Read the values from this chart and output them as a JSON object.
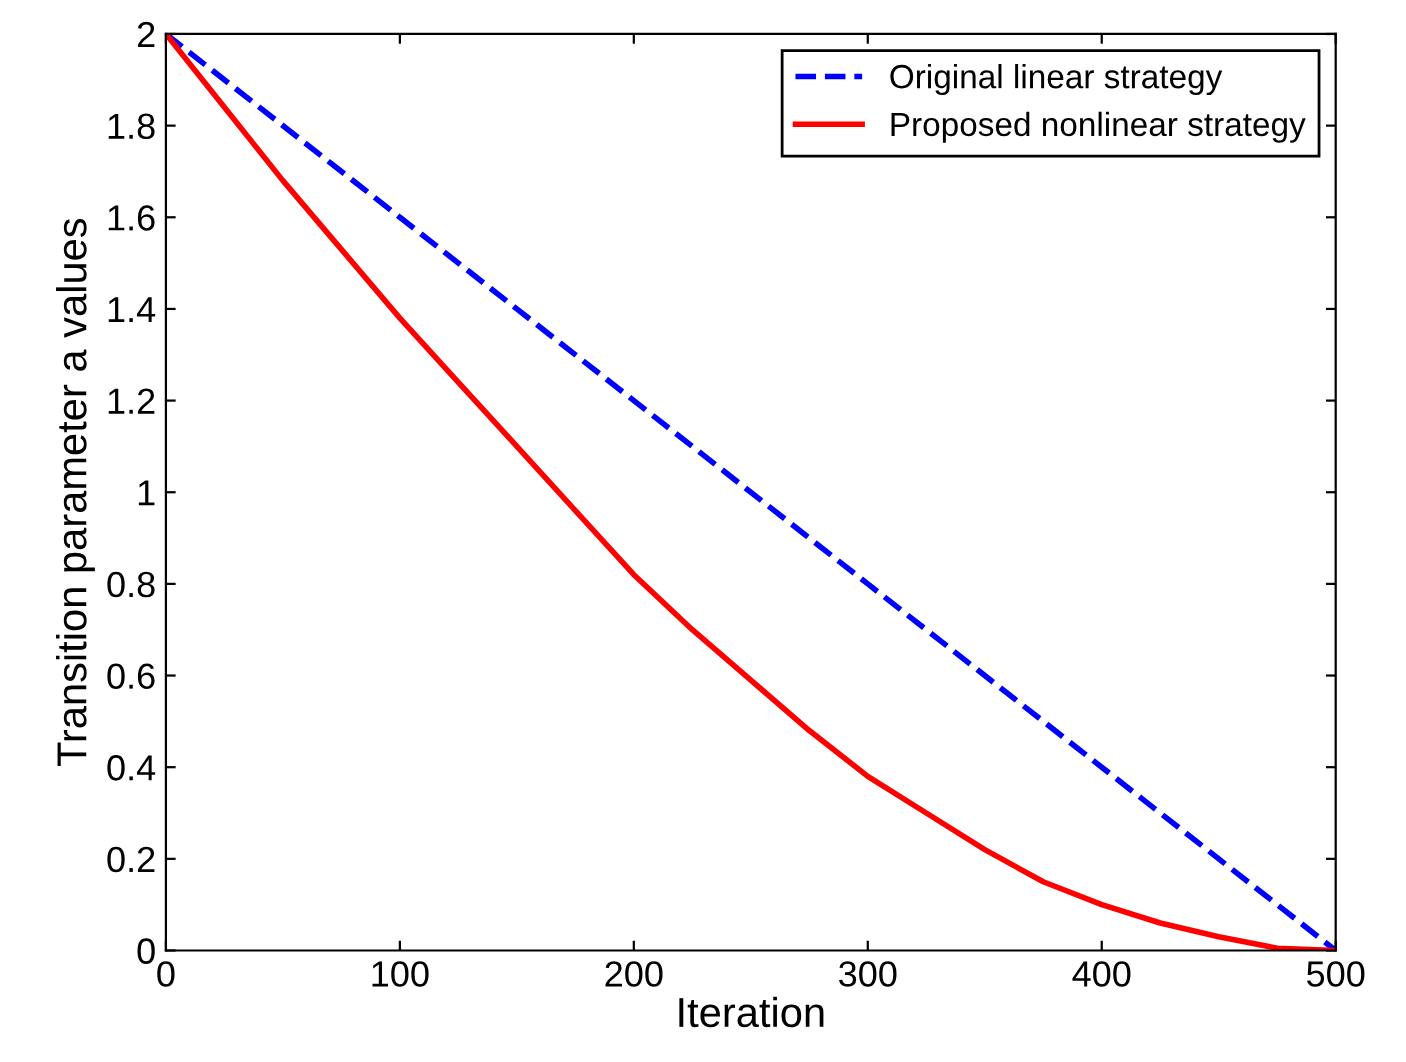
{
  "chart_data": {
    "type": "line",
    "xlabel": "Iteration",
    "ylabel": "Transition parameter a values",
    "xlim": [
      0,
      500
    ],
    "ylim": [
      0,
      2
    ],
    "xticks": [
      0,
      100,
      200,
      300,
      400,
      500
    ],
    "yticks": [
      0,
      0.2,
      0.4,
      0.6,
      0.8,
      1,
      1.2,
      1.4,
      1.6,
      1.8,
      2
    ],
    "grid": false,
    "legend": "top right",
    "series": [
      {
        "name": "Original linear strategy",
        "color": "#0000ff",
        "line_style": "dashed",
        "x": [
          0,
          100,
          200,
          300,
          400,
          500
        ],
        "values": [
          2,
          1.6,
          1.2,
          0.8,
          0.4,
          0
        ]
      },
      {
        "name": "Proposed nonlinear strategy",
        "color": "#ff0000",
        "line_style": "solid",
        "x": [
          0,
          25,
          50,
          75,
          100,
          125,
          150,
          175,
          200,
          225,
          250,
          275,
          300,
          325,
          350,
          375,
          400,
          425,
          450,
          475,
          500
        ],
        "values": [
          2,
          1.84,
          1.68,
          1.53,
          1.38,
          1.24,
          1.1,
          0.96,
          0.82,
          0.7,
          0.59,
          0.48,
          0.38,
          0.3,
          0.22,
          0.15,
          0.1,
          0.06,
          0.03,
          0.005,
          0
        ]
      }
    ]
  }
}
